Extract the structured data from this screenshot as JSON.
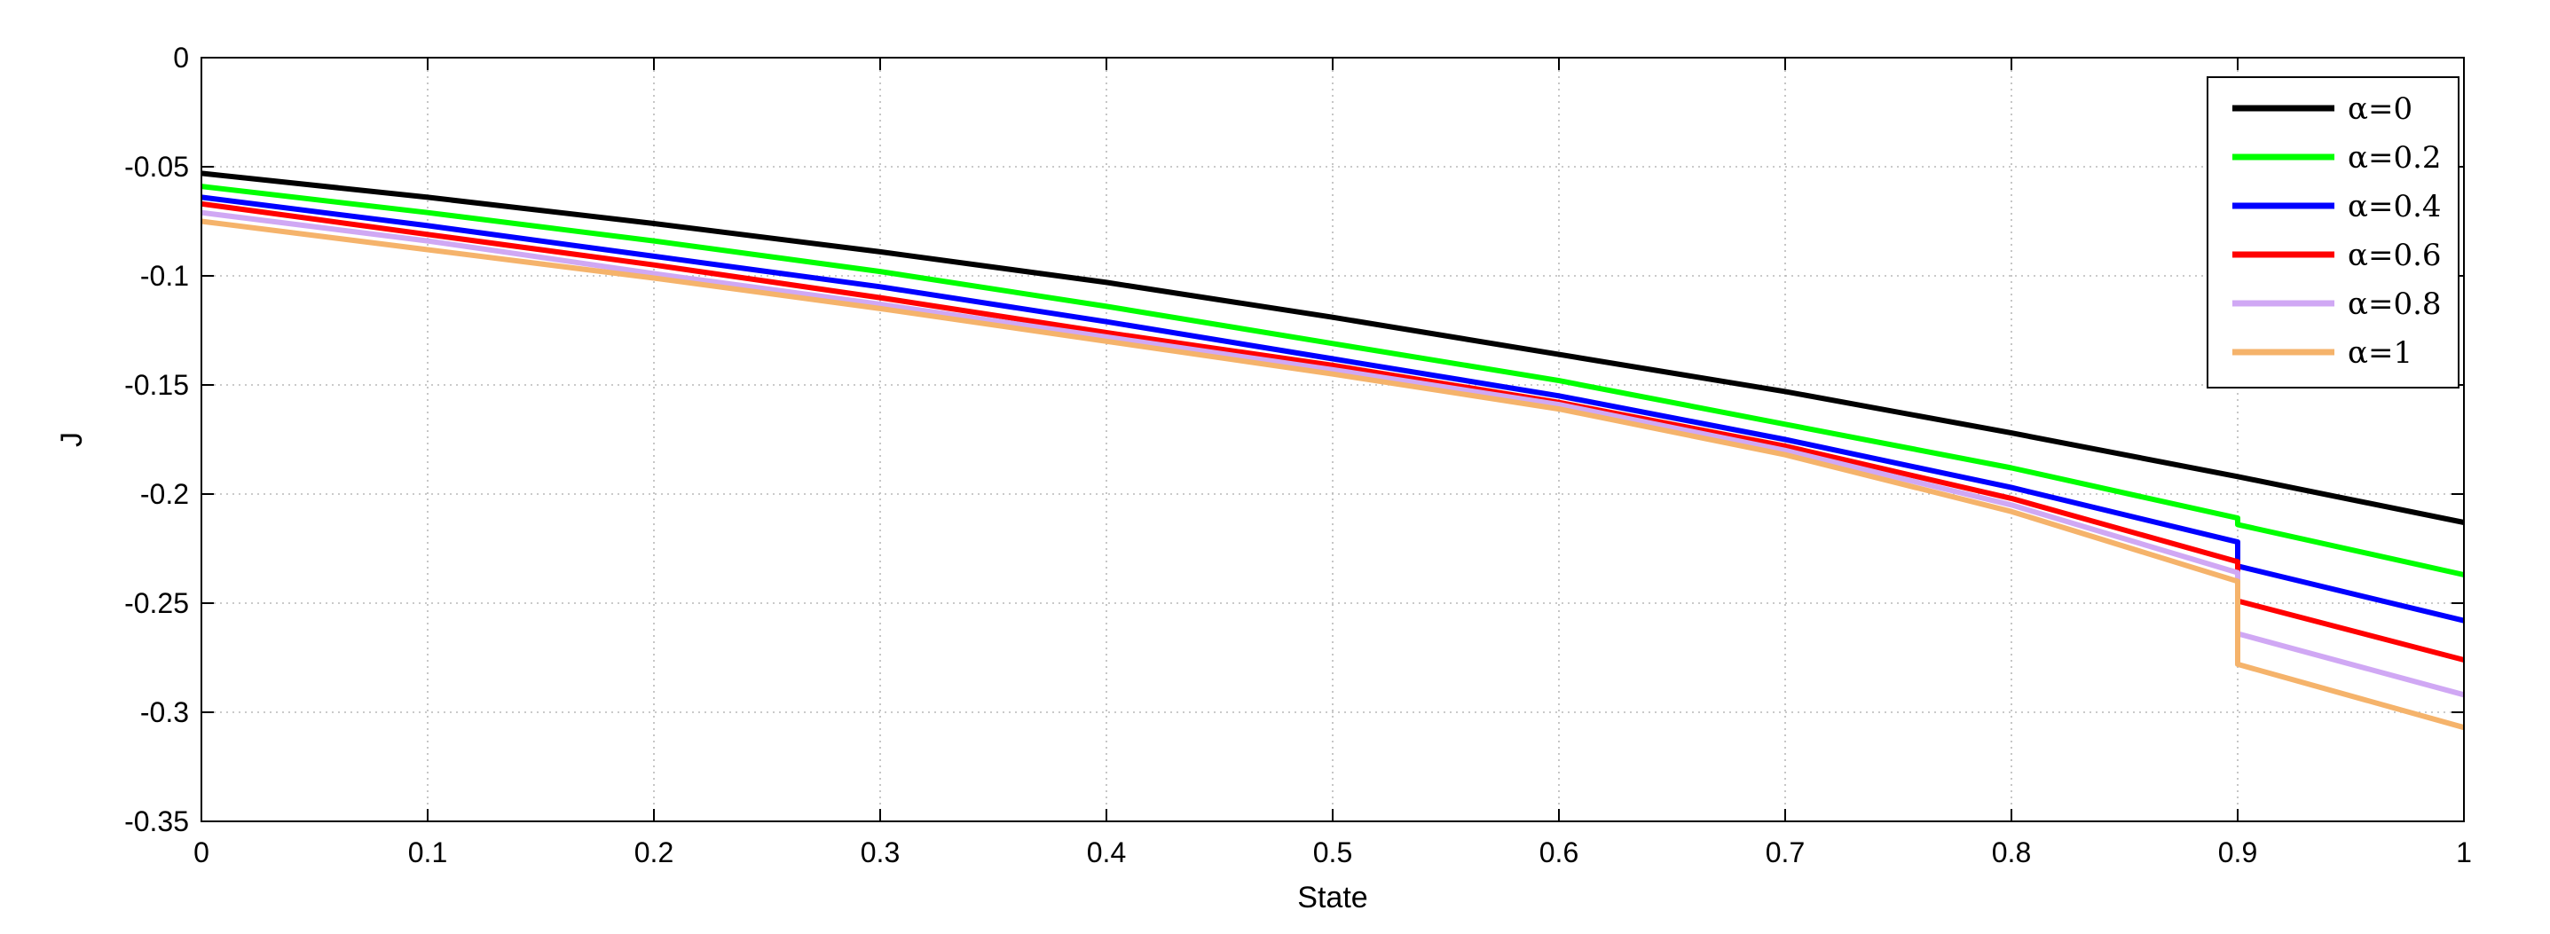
{
  "chart_data": {
    "type": "line",
    "title": "",
    "xlabel": "State",
    "ylabel": "J",
    "xlim": [
      0,
      1
    ],
    "ylim": [
      -0.35,
      0
    ],
    "xticks": [
      0,
      0.1,
      0.2,
      0.3,
      0.4,
      0.5,
      0.6,
      0.7,
      0.8,
      0.9,
      1
    ],
    "xtick_labels": [
      "0",
      "0.1",
      "0.2",
      "0.3",
      "0.4",
      "0.5",
      "0.6",
      "0.7",
      "0.8",
      "0.9",
      "1"
    ],
    "yticks": [
      0,
      -0.05,
      -0.1,
      -0.15,
      -0.2,
      -0.25,
      -0.3,
      -0.35
    ],
    "ytick_labels": [
      "0",
      "-0.05",
      "-0.1",
      "-0.15",
      "-0.2",
      "-0.25",
      "-0.3",
      "-0.35"
    ],
    "grid": true,
    "grid_style": "dotted",
    "legend_position": "top-right",
    "series": [
      {
        "name": "α=0",
        "color": "#000000",
        "x": [
          0,
          0.1,
          0.2,
          0.3,
          0.4,
          0.5,
          0.6,
          0.7,
          0.8,
          0.9,
          1.0
        ],
        "y": [
          -0.053,
          -0.064,
          -0.076,
          -0.089,
          -0.103,
          -0.119,
          -0.136,
          -0.153,
          -0.172,
          -0.192,
          -0.213
        ]
      },
      {
        "name": "α=0.2",
        "color": "#00ff00",
        "x": [
          0,
          0.1,
          0.2,
          0.3,
          0.4,
          0.5,
          0.6,
          0.7,
          0.8,
          0.9,
          0.9,
          1.0
        ],
        "y": [
          -0.059,
          -0.071,
          -0.084,
          -0.098,
          -0.114,
          -0.131,
          -0.148,
          -0.168,
          -0.188,
          -0.211,
          -0.214,
          -0.237
        ]
      },
      {
        "name": "α=0.4",
        "color": "#0000ff",
        "x": [
          0,
          0.1,
          0.2,
          0.3,
          0.4,
          0.5,
          0.6,
          0.7,
          0.8,
          0.9,
          0.9,
          1.0
        ],
        "y": [
          -0.064,
          -0.077,
          -0.091,
          -0.105,
          -0.121,
          -0.138,
          -0.155,
          -0.175,
          -0.197,
          -0.222,
          -0.233,
          -0.258
        ]
      },
      {
        "name": "α=0.6",
        "color": "#ff0000",
        "x": [
          0,
          0.1,
          0.2,
          0.3,
          0.4,
          0.5,
          0.6,
          0.7,
          0.8,
          0.9,
          0.9,
          1.0
        ],
        "y": [
          -0.067,
          -0.081,
          -0.095,
          -0.11,
          -0.126,
          -0.141,
          -0.158,
          -0.178,
          -0.202,
          -0.231,
          -0.249,
          -0.276
        ]
      },
      {
        "name": "α=0.8",
        "color": "#d0a8f4",
        "x": [
          0,
          0.1,
          0.2,
          0.3,
          0.4,
          0.5,
          0.6,
          0.7,
          0.8,
          0.9,
          0.9,
          1.0
        ],
        "y": [
          -0.071,
          -0.084,
          -0.099,
          -0.113,
          -0.128,
          -0.143,
          -0.159,
          -0.18,
          -0.205,
          -0.236,
          -0.264,
          -0.292
        ]
      },
      {
        "name": "α=1",
        "color": "#f5b36b",
        "x": [
          0,
          0.1,
          0.2,
          0.3,
          0.4,
          0.5,
          0.6,
          0.7,
          0.8,
          0.9,
          0.9,
          1.0
        ],
        "y": [
          -0.075,
          -0.088,
          -0.101,
          -0.115,
          -0.13,
          -0.145,
          -0.161,
          -0.182,
          -0.208,
          -0.24,
          -0.278,
          -0.307
        ]
      }
    ]
  }
}
